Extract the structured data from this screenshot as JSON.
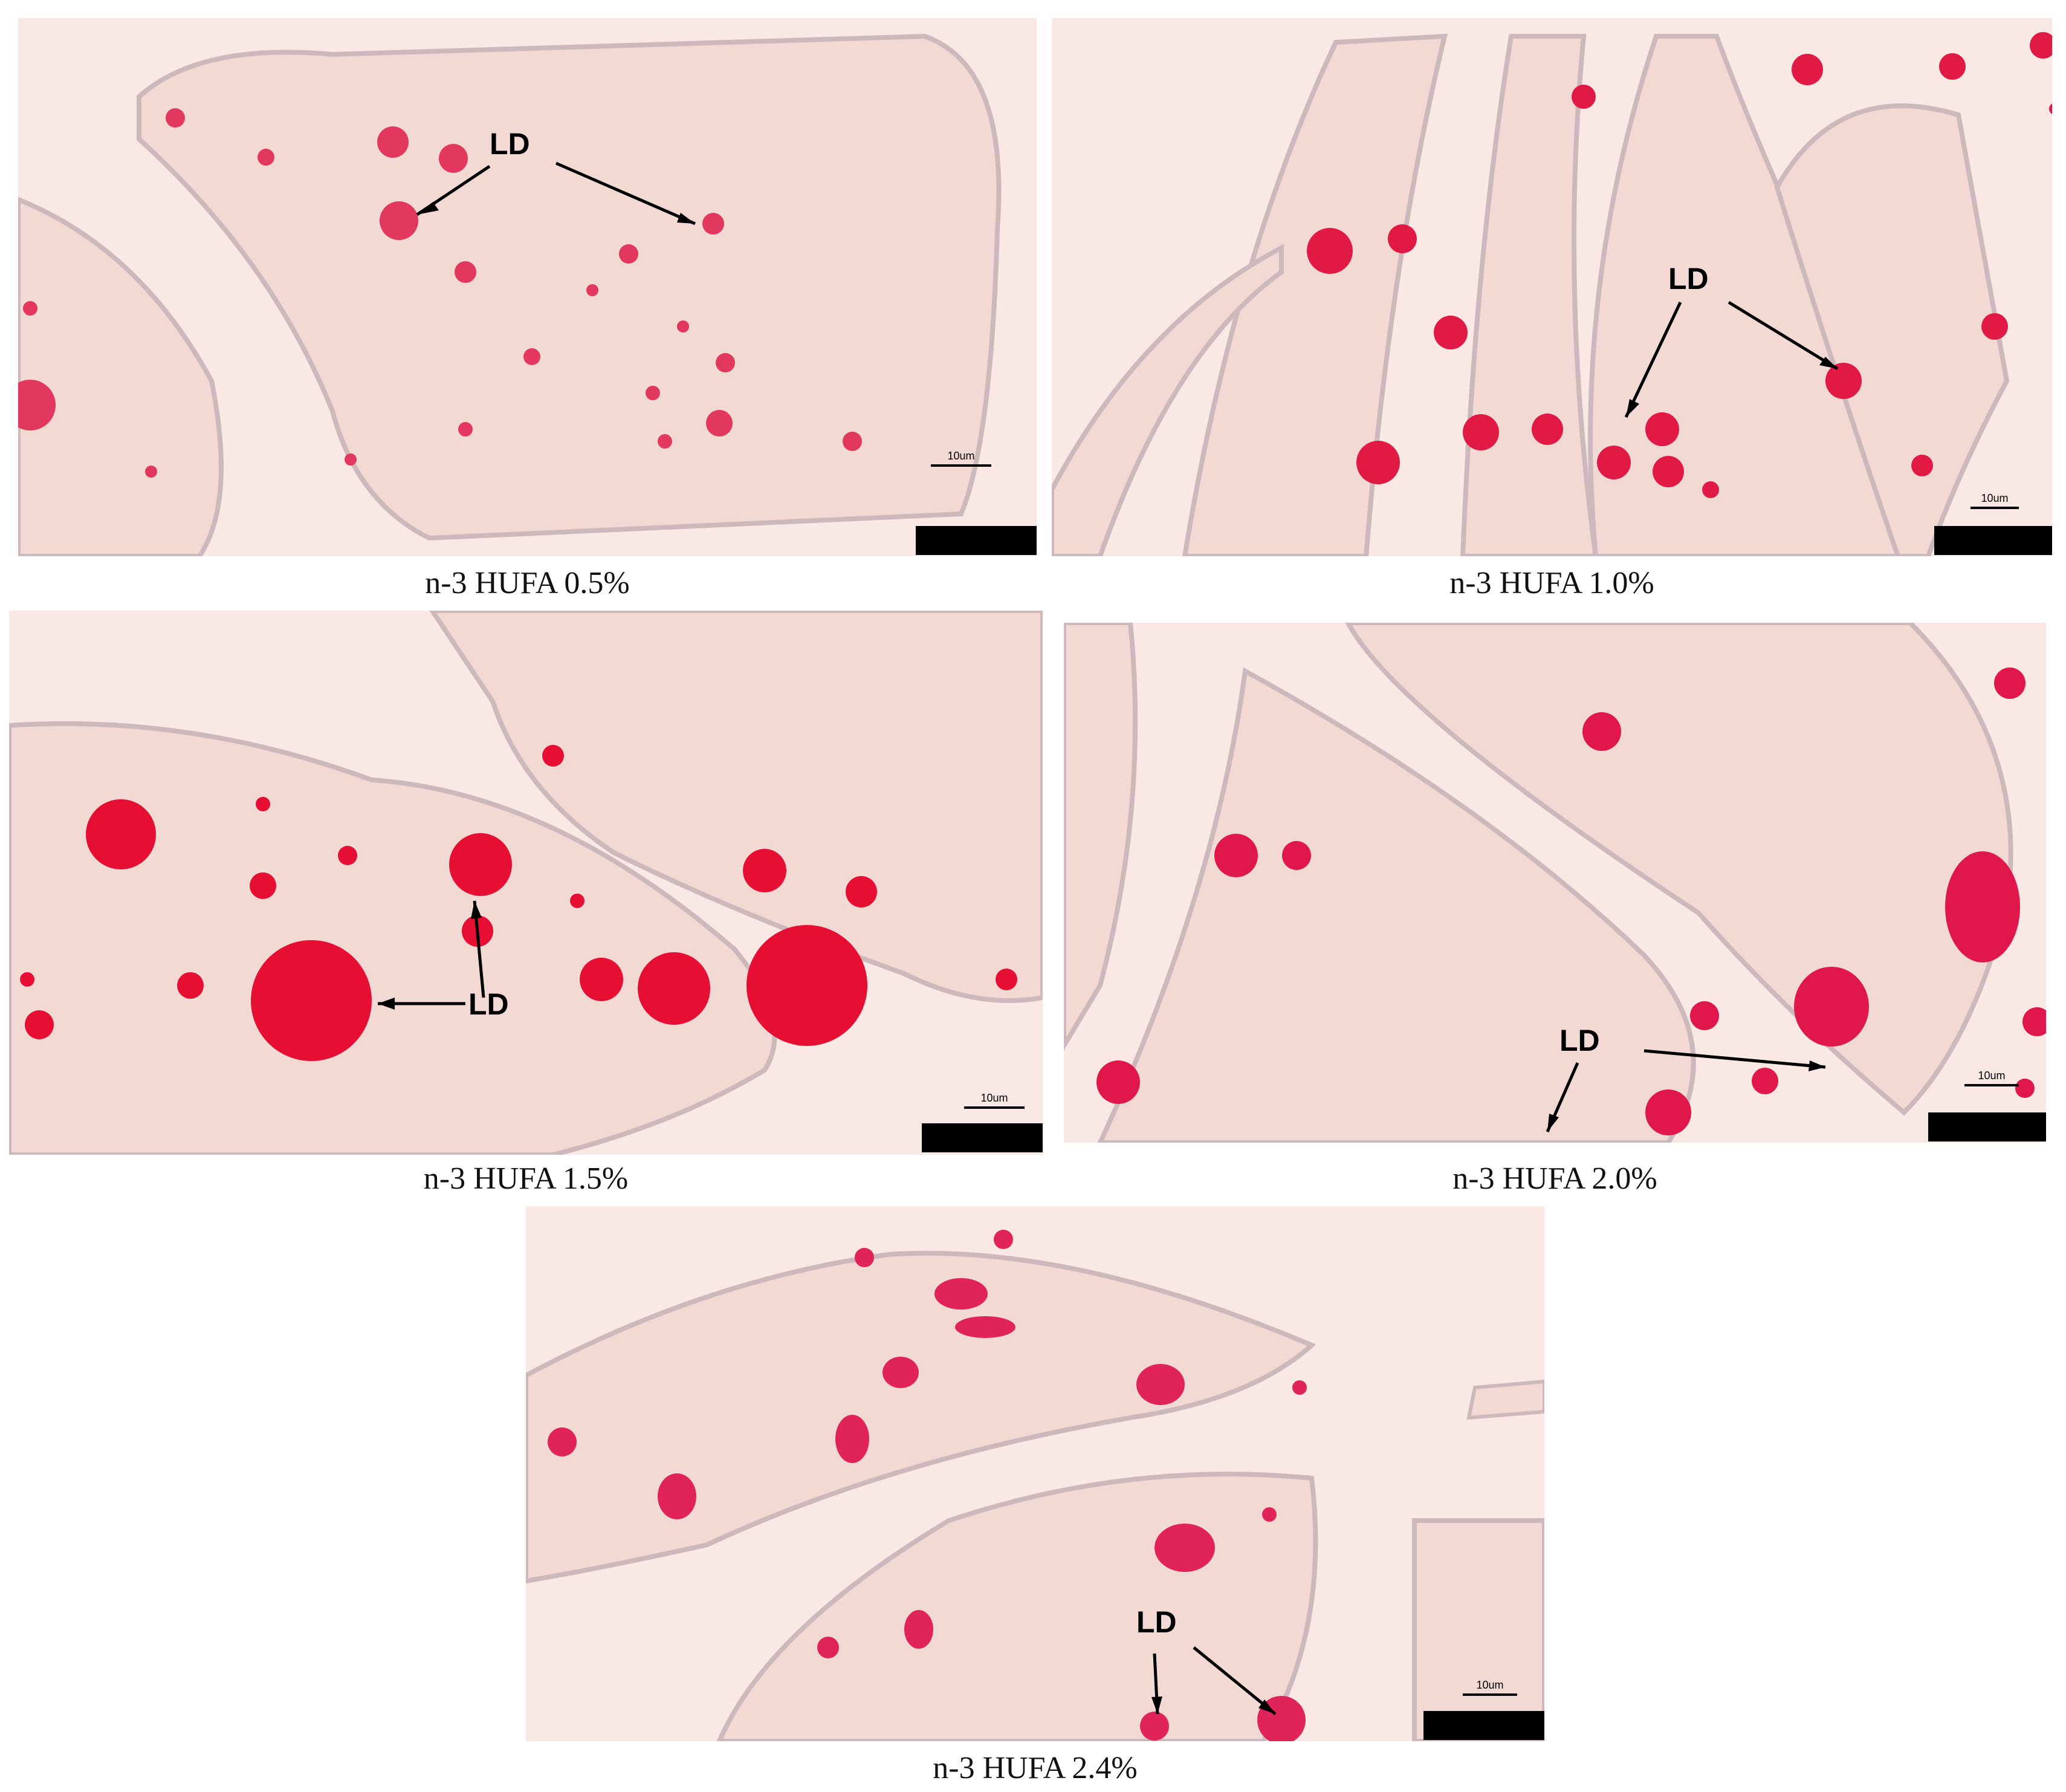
{
  "panels": [
    {
      "caption": "n-3 HUFA 0.5%",
      "label": "LD",
      "scale_bar": "10um"
    },
    {
      "caption": "n-3 HUFA 1.0%",
      "label": "LD",
      "scale_bar": "10um"
    },
    {
      "caption": "n-3 HUFA 1.5%",
      "label": "LD",
      "scale_bar": "10um"
    },
    {
      "caption": "n-3 HUFA 2.0%",
      "label": "LD",
      "scale_bar": "10um"
    },
    {
      "caption": "n-3 HUFA 2.4%",
      "label": "LD",
      "scale_bar": "10um"
    }
  ],
  "colors": {
    "background": "#f7e3df",
    "tissue": "#f4d7d2",
    "lipid": "#e8173f",
    "membrane": "#c9b7bd"
  }
}
